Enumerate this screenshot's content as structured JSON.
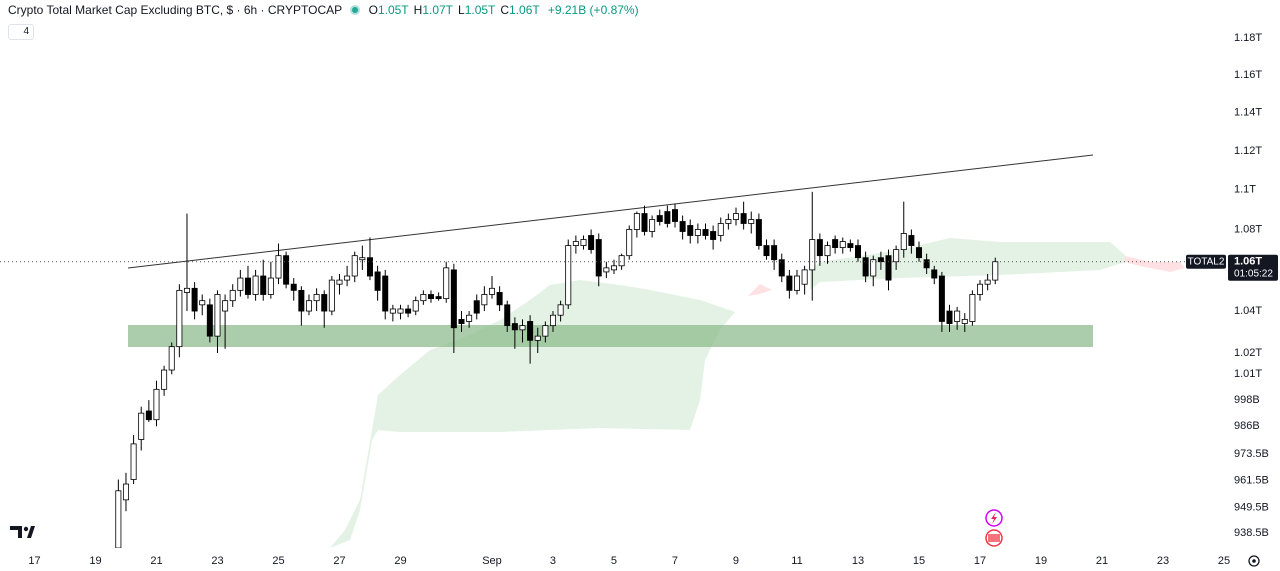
{
  "chart_data": {
    "type": "candlestick",
    "title": "Crypto Total Market Cap Excluding BTC, $ · 6h · CRYPTOCAP",
    "ohlc_legend": [
      {
        "label": "O",
        "value": "1.05T"
      },
      {
        "label": "H",
        "value": "1.07T"
      },
      {
        "label": "L",
        "value": "1.05T"
      },
      {
        "label": "C",
        "value": "1.06T"
      }
    ],
    "change": "+9.21B (+0.87%)",
    "indicator_count": "4",
    "price_label": {
      "symbol": "TOTAL2",
      "price": "1.06T",
      "countdown": "01:05:22"
    },
    "log_scale": true,
    "grid": false,
    "up_color": "#ffffff",
    "down_color": "#000000",
    "wick_color": "#000000",
    "xlim": [
      15.87,
      56.36
    ],
    "ylim": [
      932,
      1201
    ],
    "xticks": [
      17,
      19,
      21,
      23,
      25,
      27,
      29,
      {
        "value": 32,
        "label": "Sep"
      },
      {
        "value": 34,
        "label": "3"
      },
      {
        "value": 36,
        "label": "5"
      },
      {
        "value": 38,
        "label": "7"
      },
      {
        "value": 40,
        "label": "9"
      },
      {
        "value": 42,
        "label": "11"
      },
      {
        "value": 44,
        "label": "13"
      },
      {
        "value": 46,
        "label": "15"
      },
      {
        "value": 48,
        "label": "17"
      },
      {
        "value": 50,
        "label": "19"
      },
      {
        "value": 52,
        "label": "21"
      },
      {
        "value": 54,
        "label": "23"
      },
      {
        "value": 56,
        "label": "25"
      }
    ],
    "yticks": [
      {
        "value": 1180,
        "label": "1.18T"
      },
      {
        "value": 1160,
        "label": "1.16T"
      },
      {
        "value": 1140,
        "label": "1.14T"
      },
      {
        "value": 1120,
        "label": "1.12T"
      },
      {
        "value": 1100,
        "label": "1.1T"
      },
      {
        "value": 1080,
        "label": "1.08T"
      },
      {
        "value": 1040,
        "label": "1.04T"
      },
      {
        "value": 1020,
        "label": "1.02T"
      },
      {
        "value": 1010,
        "label": "1.01T"
      },
      {
        "value": 998,
        "label": "998B"
      },
      {
        "value": 986,
        "label": "986B"
      },
      {
        "value": 973.5,
        "label": "973.5B"
      },
      {
        "value": 961.5,
        "label": "961.5B"
      },
      {
        "value": 949.5,
        "label": "949.5B"
      },
      {
        "value": 938.5,
        "label": "938.5B"
      }
    ],
    "x": [
      19.75,
      20,
      20.25,
      20.5,
      20.75,
      21,
      21.25,
      21.5,
      21.75,
      22,
      22.25,
      22.5,
      22.75,
      23,
      23.25,
      23.5,
      23.75,
      24,
      24.25,
      24.5,
      24.75,
      25,
      25.25,
      25.5,
      25.75,
      26,
      26.25,
      26.5,
      26.75,
      27,
      27.25,
      27.5,
      27.75,
      28,
      28.25,
      28.5,
      28.75,
      29,
      29.25,
      29.5,
      29.75,
      30,
      30.25,
      30.5,
      30.75,
      31,
      31.25,
      31.5,
      31.75,
      32,
      32.25,
      32.5,
      32.75,
      33,
      33.25,
      33.5,
      33.75,
      34,
      34.25,
      34.5,
      34.75,
      35,
      35.25,
      35.5,
      35.75,
      36,
      36.25,
      36.5,
      36.75,
      37,
      37.25,
      37.5,
      37.75,
      38,
      38.25,
      38.5,
      38.75,
      39,
      39.25,
      39.5,
      39.75,
      40,
      40.25,
      40.5,
      40.75,
      41,
      41.25,
      41.5,
      41.75,
      42,
      42.25,
      42.5,
      42.75,
      43,
      43.25,
      43.5,
      43.75,
      44,
      44.25,
      44.5,
      44.75,
      45,
      45.25,
      45.5,
      45.75,
      46,
      46.25,
      46.5,
      46.75,
      47,
      47.25,
      47.5,
      47.75,
      48,
      48.25,
      48.5
    ],
    "open": [
      932,
      953,
      962,
      980,
      993,
      989,
      1003,
      1012,
      1023,
      1049,
      1051,
      1043,
      1043,
      1028,
      1040,
      1045,
      1050,
      1056,
      1048,
      1057,
      1048,
      1056,
      1067,
      1053,
      1050,
      1040,
      1045,
      1048,
      1040,
      1053,
      1055,
      1057,
      1065,
      1066,
      1059,
      1057,
      1039,
      1039,
      1041,
      1040,
      1045,
      1048,
      1047,
      1046,
      1060,
      1036,
      1035,
      1045,
      1043,
      1048,
      1049,
      1043,
      1034,
      1031,
      1035,
      1026,
      1028,
      1033,
      1038,
      1043,
      1072,
      1072,
      1077,
      1075,
      1059,
      1060,
      1062,
      1067,
      1080,
      1088,
      1079,
      1087,
      1089,
      1090,
      1084,
      1082,
      1077,
      1080,
      1079,
      1077,
      1083,
      1085,
      1088,
      1083,
      1085,
      1072,
      1072,
      1065,
      1057,
      1050,
      1053,
      1060,
      1075,
      1067,
      1075,
      1071,
      1073,
      1072,
      1066,
      1057,
      1066,
      1067,
      1064,
      1070,
      1077,
      1071,
      1065,
      1060,
      1057,
      1040,
      1035,
      1034,
      1035,
      1048,
      1053,
      1055
    ],
    "high": [
      962,
      965,
      982,
      995,
      998,
      1007,
      1014,
      1025,
      1053,
      1088,
      1054,
      1048,
      1046,
      1050,
      1048,
      1053,
      1060,
      1062,
      1060,
      1065,
      1064,
      1073,
      1069,
      1056,
      1052,
      1048,
      1051,
      1050,
      1057,
      1058,
      1062,
      1069,
      1072,
      1076,
      1062,
      1060,
      1043,
      1043,
      1043,
      1047,
      1050,
      1050,
      1049,
      1064,
      1063,
      1040,
      1040,
      1048,
      1052,
      1057,
      1052,
      1045,
      1037,
      1036,
      1038,
      1032,
      1035,
      1040,
      1045,
      1075,
      1077,
      1077,
      1080,
      1078,
      1064,
      1065,
      1068,
      1082,
      1089,
      1092,
      1087,
      1090,
      1092,
      1093,
      1087,
      1085,
      1083,
      1083,
      1082,
      1086,
      1088,
      1091,
      1094,
      1089,
      1088,
      1075,
      1075,
      1068,
      1060,
      1060,
      1062,
      1099,
      1078,
      1074,
      1077,
      1076,
      1075,
      1075,
      1069,
      1067,
      1069,
      1070,
      1072,
      1094,
      1080,
      1074,
      1068,
      1062,
      1059,
      1043,
      1042,
      1039,
      1050,
      1055,
      1058,
      1066
    ],
    "low": [
      930,
      948,
      960,
      975,
      988,
      986,
      1000,
      1010,
      1018,
      1040,
      1036,
      1038,
      1025,
      1020,
      1022,
      1042,
      1047,
      1046,
      1045,
      1045,
      1046,
      1053,
      1051,
      1045,
      1033,
      1038,
      1040,
      1032,
      1038,
      1048,
      1052,
      1054,
      1060,
      1055,
      1045,
      1036,
      1035,
      1036,
      1037,
      1038,
      1043,
      1044,
      1045,
      1044,
      1020,
      1030,
      1032,
      1036,
      1040,
      1046,
      1040,
      1030,
      1022,
      1025,
      1015,
      1020,
      1025,
      1030,
      1035,
      1041,
      1068,
      1070,
      1068,
      1052,
      1056,
      1058,
      1060,
      1065,
      1076,
      1077,
      1076,
      1082,
      1081,
      1081,
      1075,
      1073,
      1073,
      1075,
      1070,
      1074,
      1080,
      1082,
      1080,
      1078,
      1070,
      1065,
      1060,
      1054,
      1046,
      1048,
      1048,
      1045,
      1062,
      1063,
      1068,
      1068,
      1069,
      1064,
      1054,
      1052,
      1060,
      1050,
      1060,
      1066,
      1068,
      1064,
      1058,
      1053,
      1030,
      1030,
      1031,
      1030,
      1033,
      1045,
      1050,
      1053
    ],
    "close": [
      957,
      960,
      978,
      992,
      989,
      1003,
      1012,
      1023,
      1050,
      1051,
      1040,
      1045,
      1028,
      1048,
      1045,
      1050,
      1056,
      1048,
      1057,
      1048,
      1056,
      1067,
      1053,
      1050,
      1040,
      1045,
      1048,
      1040,
      1055,
      1055,
      1057,
      1067,
      1066,
      1057,
      1050,
      1040,
      1041,
      1041,
      1039,
      1045,
      1048,
      1046,
      1046,
      1061,
      1032,
      1034,
      1038,
      1039,
      1048,
      1051,
      1043,
      1033,
      1031,
      1033,
      1026,
      1028,
      1033,
      1038,
      1043,
      1072,
      1074,
      1075,
      1070,
      1057,
      1061,
      1062,
      1067,
      1080,
      1088,
      1079,
      1085,
      1084,
      1083,
      1084,
      1079,
      1077,
      1080,
      1077,
      1075,
      1083,
      1085,
      1088,
      1083,
      1085,
      1072,
      1067,
      1065,
      1057,
      1050,
      1057,
      1060,
      1075,
      1067,
      1072,
      1071,
      1074,
      1071,
      1066,
      1057,
      1065,
      1064,
      1055,
      1070,
      1078,
      1072,
      1066,
      1061,
      1056,
      1035,
      1034,
      1040,
      1036,
      1048,
      1053,
      1055,
      1064
    ]
  }
}
